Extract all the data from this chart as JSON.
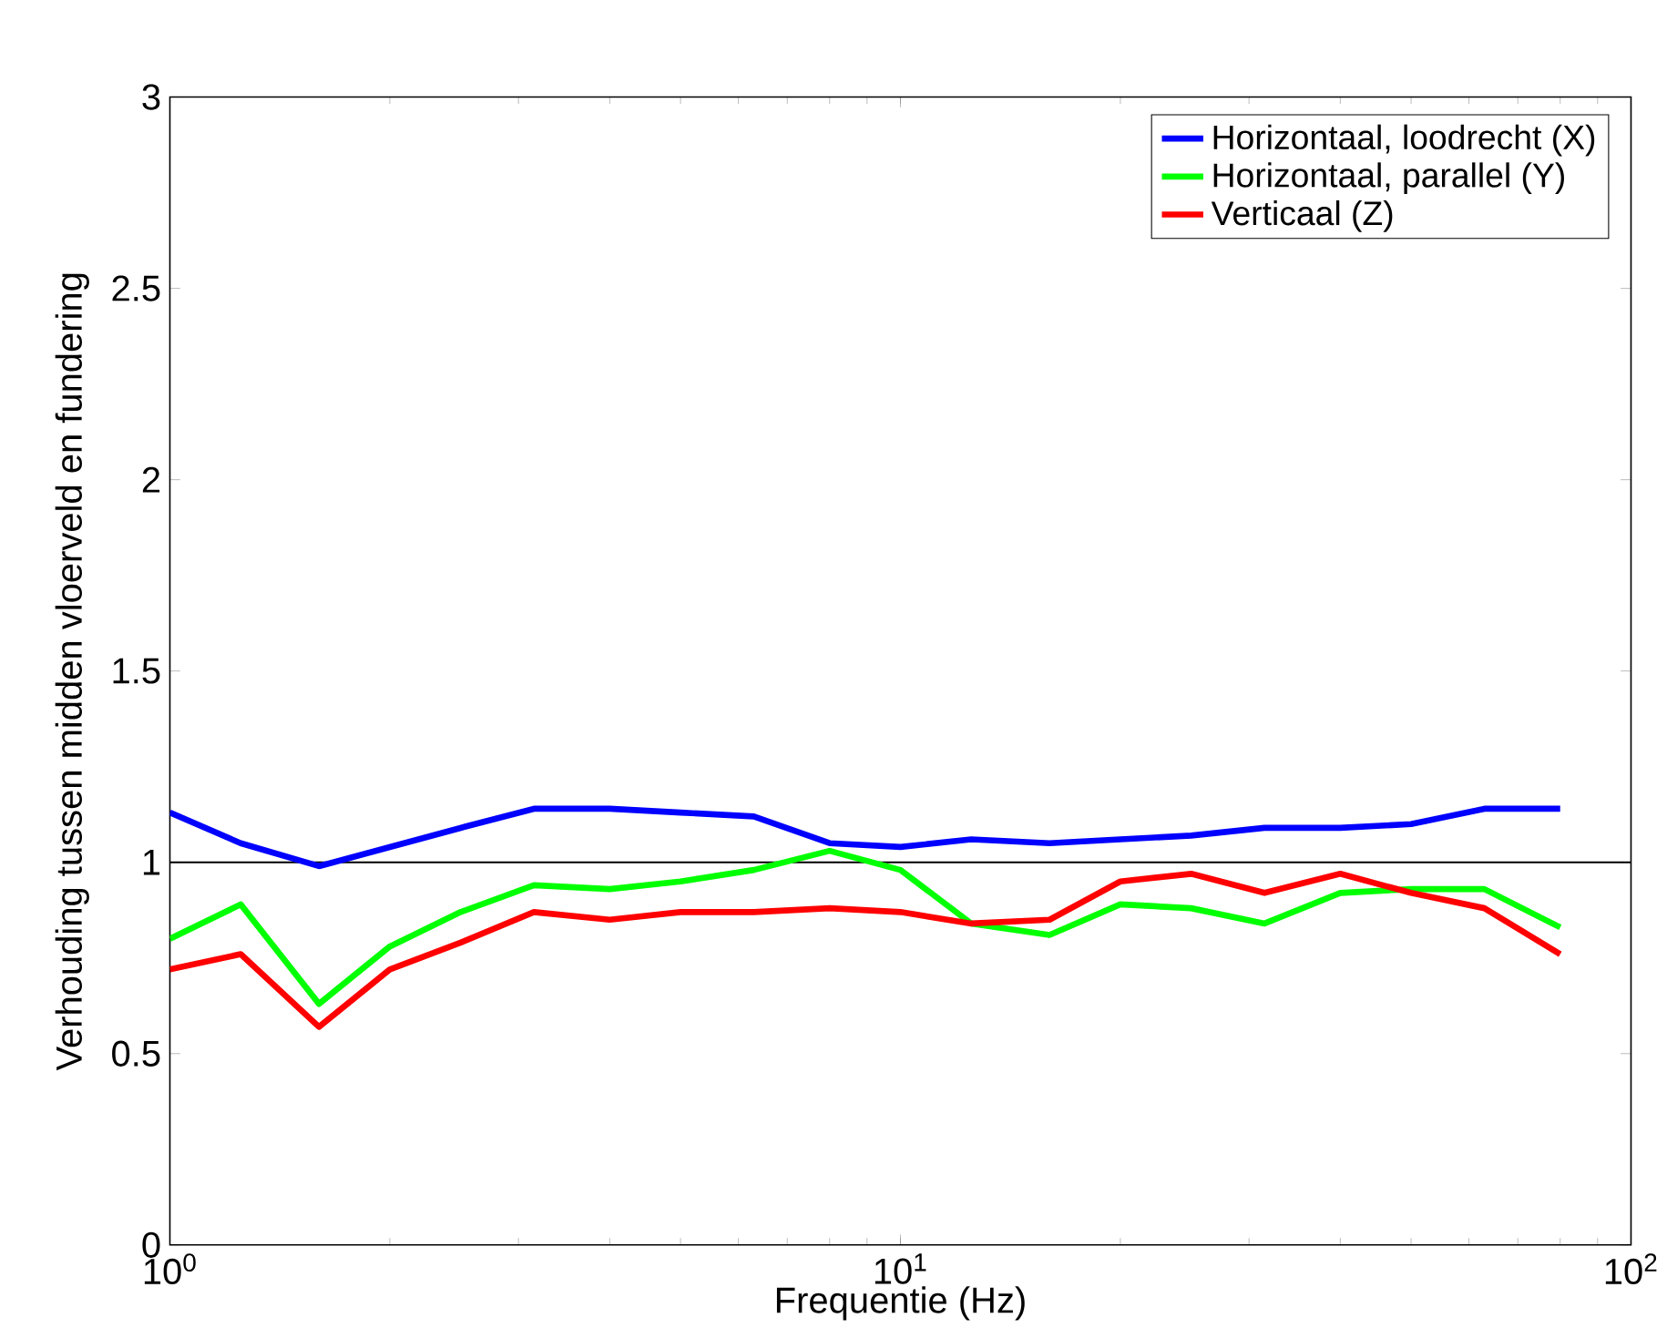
{
  "chart_data": {
    "type": "line",
    "xlabel": "Frequentie (Hz)",
    "ylabel": "Verhouding tussen midden vloerveld en fundering",
    "x": [
      1,
      1.25,
      1.6,
      2,
      2.5,
      3.15,
      4,
      5,
      6.3,
      8,
      10,
      12.5,
      16,
      20,
      25,
      31.5,
      40,
      50,
      63,
      80
    ],
    "series": [
      {
        "name": "Horizontaal, loodrecht (X)",
        "color": "#0000ff",
        "values": [
          1.13,
          1.05,
          0.99,
          1.04,
          1.09,
          1.14,
          1.14,
          1.13,
          1.12,
          1.05,
          1.04,
          1.06,
          1.05,
          1.06,
          1.07,
          1.09,
          1.09,
          1.1,
          1.14,
          1.14
        ]
      },
      {
        "name": "Horizontaal, parallel (Y)",
        "color": "#00ff00",
        "values": [
          0.8,
          0.89,
          0.63,
          0.78,
          0.87,
          0.94,
          0.93,
          0.95,
          0.98,
          1.03,
          0.98,
          0.84,
          0.81,
          0.89,
          0.88,
          0.84,
          0.92,
          0.93,
          0.93,
          0.83
        ]
      },
      {
        "name": "Verticaal (Z)",
        "color": "#ff0000",
        "values": [
          0.72,
          0.76,
          0.57,
          0.72,
          0.79,
          0.87,
          0.85,
          0.87,
          0.87,
          0.88,
          0.87,
          0.84,
          0.85,
          0.95,
          0.97,
          0.92,
          0.97,
          0.92,
          0.88,
          0.76
        ]
      }
    ],
    "log": "x",
    "xlim": [
      1,
      100
    ],
    "ylim": [
      0,
      3
    ],
    "xticks": [
      {
        "value": 1,
        "label": "10$^{0}$"
      },
      {
        "value": 10,
        "label": "10$^{1}$"
      },
      {
        "value": 100,
        "label": "10$^{2}$"
      }
    ],
    "yticks": [
      0,
      0.5,
      1,
      1.5,
      2,
      2.5,
      3
    ],
    "ref_lines": [
      {
        "axis": "y",
        "value": 1,
        "color": "#000000"
      }
    ],
    "grid": false,
    "legend": "top right",
    "marker": "none",
    "line_style": "solid"
  }
}
